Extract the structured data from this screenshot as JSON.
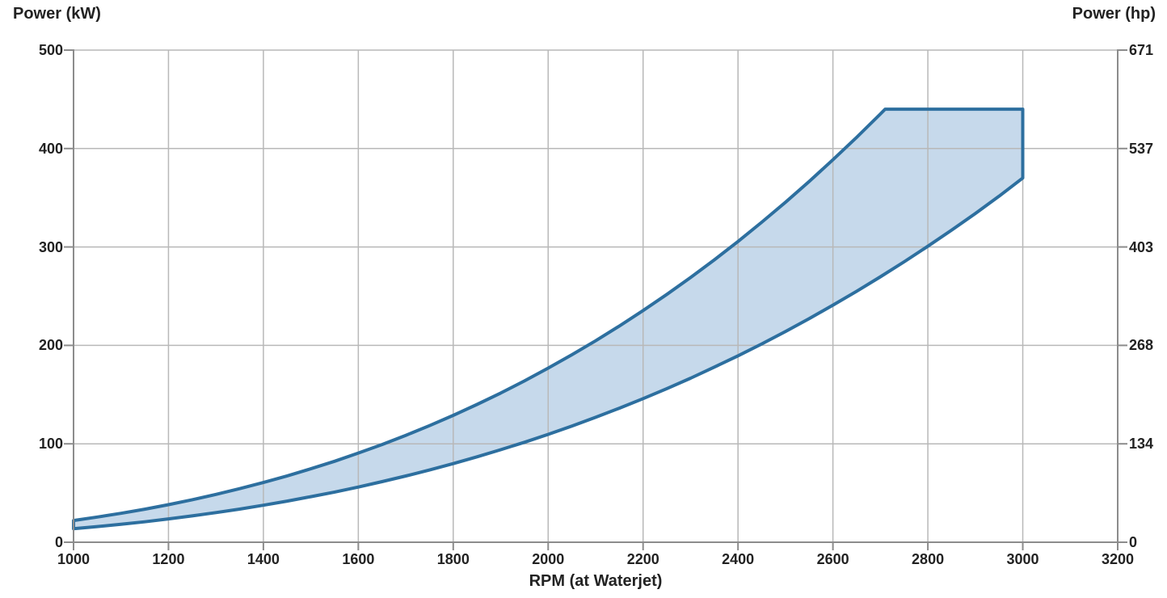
{
  "chart_data": {
    "type": "area",
    "x_axis": {
      "label": "RPM (at Waterjet)",
      "min": 1000,
      "max": 3200,
      "ticks": [
        1000,
        1200,
        1400,
        1600,
        1800,
        2000,
        2200,
        2400,
        2600,
        2800,
        3000,
        3200
      ],
      "grid": true
    },
    "y_axis_left": {
      "label": "Power (kW)",
      "min": 0,
      "max": 500,
      "ticks": [
        0,
        100,
        200,
        300,
        400,
        500
      ],
      "grid": true
    },
    "y_axis_right": {
      "label": "Power (hp)",
      "ticks": [
        0,
        134,
        268,
        403,
        537,
        671
      ]
    },
    "legend": "none",
    "series": [
      {
        "name": "upper-power-limit",
        "points": [
          [
            1000,
            22.1
          ],
          [
            1050,
            25.6
          ],
          [
            1100,
            29.4
          ],
          [
            1150,
            33.6
          ],
          [
            1200,
            38.2
          ],
          [
            1250,
            43.2
          ],
          [
            1300,
            48.6
          ],
          [
            1350,
            54.4
          ],
          [
            1400,
            60.7
          ],
          [
            1450,
            67.4
          ],
          [
            1500,
            74.6
          ],
          [
            1550,
            82.3
          ],
          [
            1600,
            90.6
          ],
          [
            1650,
            99.3
          ],
          [
            1700,
            108.6
          ],
          [
            1750,
            118.5
          ],
          [
            1800,
            128.9
          ],
          [
            1850,
            140.0
          ],
          [
            1900,
            151.6
          ],
          [
            1950,
            163.9
          ],
          [
            2000,
            176.9
          ],
          [
            2050,
            190.5
          ],
          [
            2100,
            204.7
          ],
          [
            2150,
            219.7
          ],
          [
            2200,
            235.4
          ],
          [
            2250,
            251.8
          ],
          [
            2300,
            269.0
          ],
          [
            2350,
            286.9
          ],
          [
            2400,
            305.6
          ],
          [
            2450,
            325.1
          ],
          [
            2500,
            345.4
          ],
          [
            2550,
            366.6
          ],
          [
            2600,
            388.6
          ],
          [
            2650,
            411.4
          ],
          [
            2700,
            435.1
          ],
          [
            2710,
            440.0
          ],
          [
            3000,
            440.0
          ]
        ]
      },
      {
        "name": "lower-power-limit",
        "points": [
          [
            1000,
            13.7
          ],
          [
            1050,
            15.9
          ],
          [
            1100,
            18.2
          ],
          [
            1150,
            20.8
          ],
          [
            1200,
            23.7
          ],
          [
            1250,
            26.8
          ],
          [
            1300,
            30.1
          ],
          [
            1350,
            33.7
          ],
          [
            1400,
            37.6
          ],
          [
            1450,
            41.8
          ],
          [
            1500,
            46.3
          ],
          [
            1550,
            51.0
          ],
          [
            1600,
            56.1
          ],
          [
            1650,
            61.6
          ],
          [
            1700,
            67.3
          ],
          [
            1750,
            73.4
          ],
          [
            1800,
            79.9
          ],
          [
            1850,
            86.8
          ],
          [
            1900,
            94.0
          ],
          [
            1950,
            101.6
          ],
          [
            2000,
            109.6
          ],
          [
            2050,
            118.1
          ],
          [
            2100,
            126.9
          ],
          [
            2150,
            136.2
          ],
          [
            2200,
            145.9
          ],
          [
            2250,
            156.1
          ],
          [
            2300,
            166.7
          ],
          [
            2350,
            177.9
          ],
          [
            2400,
            189.4
          ],
          [
            2450,
            201.5
          ],
          [
            2500,
            214.1
          ],
          [
            2550,
            227.2
          ],
          [
            2600,
            240.9
          ],
          [
            2650,
            255.0
          ],
          [
            2700,
            269.7
          ],
          [
            2750,
            284.9
          ],
          [
            2800,
            300.7
          ],
          [
            2850,
            317.1
          ],
          [
            2900,
            334.0
          ],
          [
            2950,
            351.6
          ],
          [
            3000,
            370.0
          ]
        ]
      }
    ],
    "band_style": {
      "fill": "#c6d9eb",
      "stroke": "#2d6f9f",
      "stroke_width": 4
    },
    "grid_color": "#b8b8b8",
    "axis_color": "#8c8c8c",
    "text_color": "#222222",
    "background": "#ffffff"
  }
}
